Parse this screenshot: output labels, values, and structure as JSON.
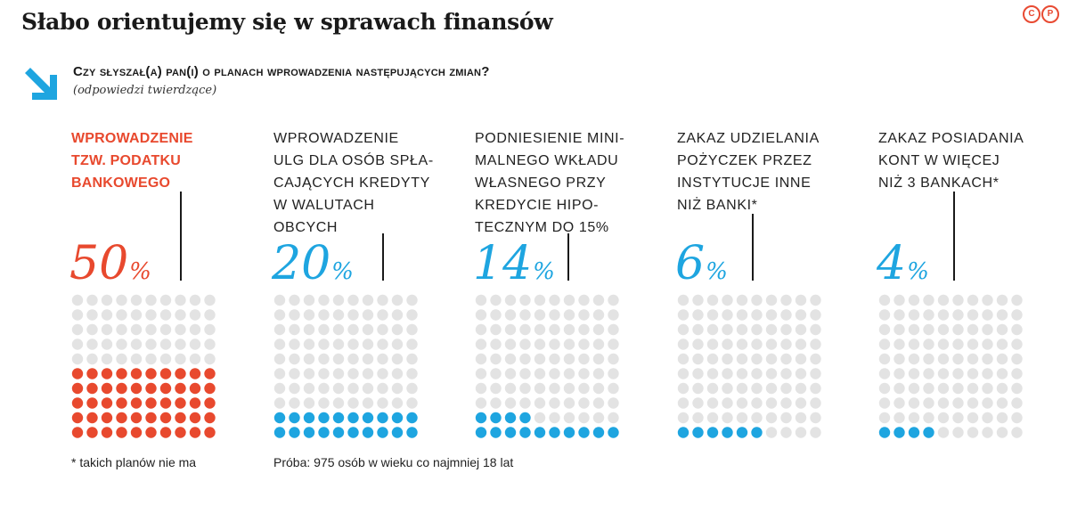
{
  "header": {
    "title": "Słabo orientujemy się w sprawach finansów",
    "logo_letters": [
      "C",
      "P"
    ],
    "question": "Czy słyszał(a) pan(i) o planach wprowadzenia następujących zmian?",
    "subtitle": "(odpowiedzi twierdzące)"
  },
  "colors": {
    "highlight": "#e8492e",
    "accent": "#1ea5e0",
    "empty_dot": "#e3e3e3",
    "line": "#1a1a1a"
  },
  "chart_data": {
    "type": "waffle",
    "grid": "10x10 dots per category, filled from bottom row upward",
    "items": [
      {
        "label_lines": [
          "WPROWADZENIE",
          "TZW. PODATKU",
          "BANKOWEGO"
        ],
        "value": 50,
        "value_text": "50",
        "unit": "%",
        "highlight": true
      },
      {
        "label_lines": [
          "WPROWADZENIE",
          "ULG DLA OSÓB SPŁA-",
          "CAJĄCYCH KREDYTY",
          "W WALUTACH",
          "OBCYCH"
        ],
        "value": 20,
        "value_text": "20",
        "unit": "%",
        "highlight": false
      },
      {
        "label_lines": [
          "PODNIESIENIE MINI-",
          "MALNEGO WKŁADU",
          "WŁASNEGO PRZY",
          "KREDYCIE HIPO-",
          "TECZNYM DO 15%"
        ],
        "value": 14,
        "value_text": "14",
        "unit": "%",
        "highlight": false
      },
      {
        "label_lines": [
          "ZAKAZ UDZIELANIA",
          "POŻYCZEK PRZEZ",
          "INSTYTUCJE INNE",
          "NIŻ BANKI*"
        ],
        "value": 6,
        "value_text": "6",
        "unit": "%",
        "highlight": false
      },
      {
        "label_lines": [
          "ZAKAZ POSIADANIA",
          "KONT W WIĘCEJ",
          "NIŻ 3 BANKACH*"
        ],
        "value": 4,
        "value_text": "4",
        "unit": "%",
        "highlight": false
      }
    ]
  },
  "footer": {
    "footnote": "* takich planów nie ma",
    "sample": "Próba: 975 osób w wieku co najmniej 18 lat"
  }
}
